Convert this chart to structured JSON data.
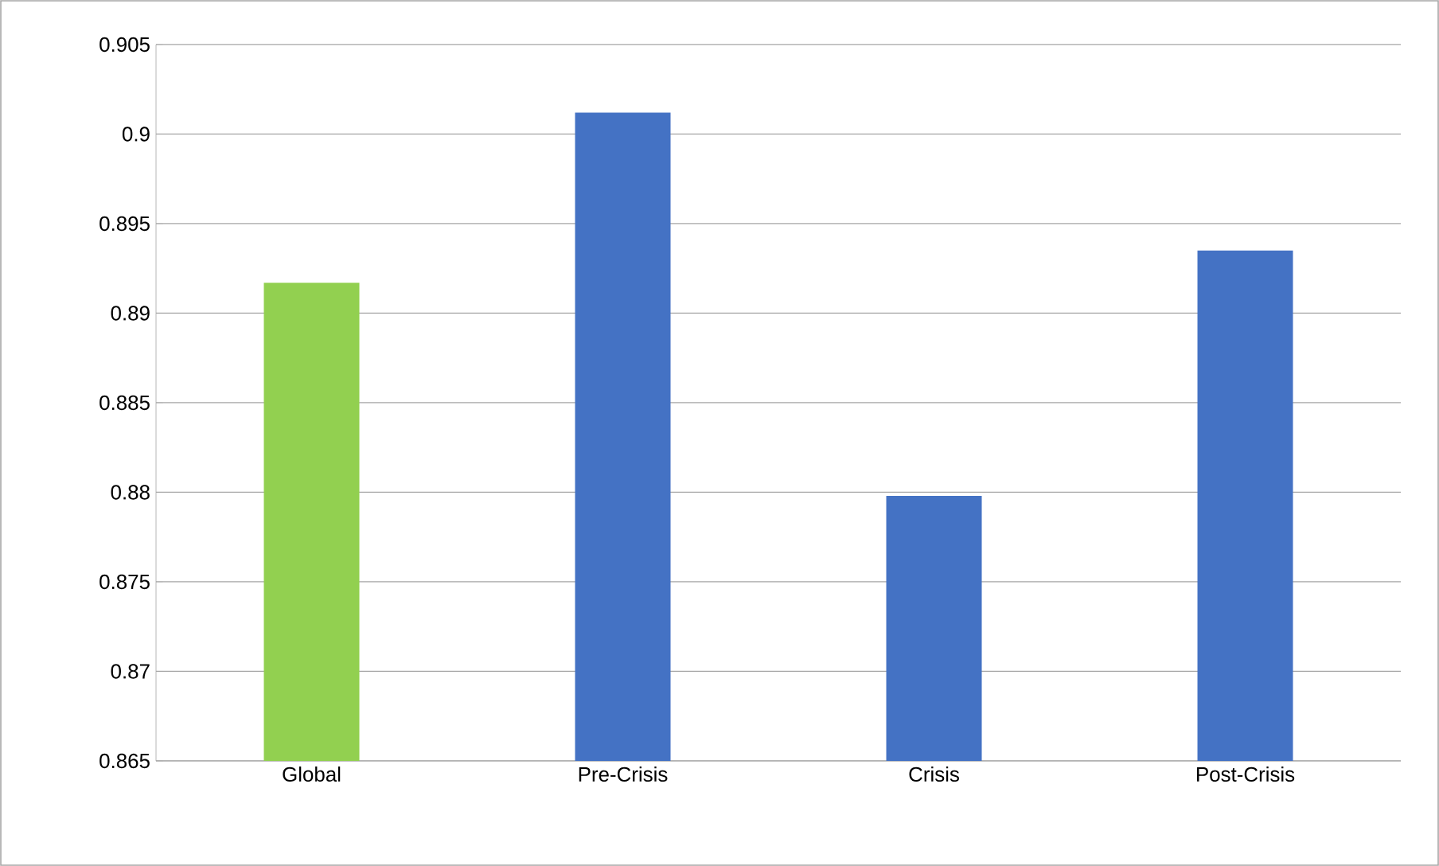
{
  "chart_data": {
    "type": "bar",
    "categories": [
      "Global",
      "Pre-Crisis",
      "Crisis",
      "Post-Crisis"
    ],
    "values": [
      0.8917,
      0.9012,
      0.8798,
      0.8935
    ],
    "colors": [
      "#92d050",
      "#4472c4",
      "#4472c4",
      "#4472c4"
    ],
    "ylim": [
      0.865,
      0.905
    ],
    "yticks": [
      0.865,
      0.87,
      0.875,
      0.88,
      0.885,
      0.89,
      0.895,
      0.9,
      0.905
    ],
    "grid": "y"
  }
}
